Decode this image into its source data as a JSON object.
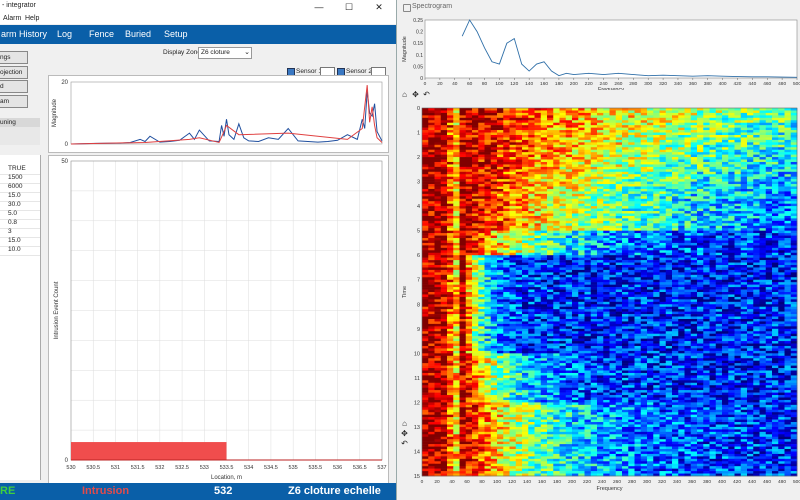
{
  "app": {
    "title": "- integrator",
    "minimize": "—",
    "maximize": "☐",
    "close": "✕"
  },
  "menu": [
    "Alarm",
    "Help"
  ],
  "nav": [
    "arm History",
    "Log",
    "Fence",
    "Buried",
    "Setup"
  ],
  "side_buttons": [
    "ngs",
    "ojection",
    "d",
    "am"
  ],
  "warning_label": "uning",
  "params": [
    "TRUE",
    "1500",
    "6000",
    "15.0",
    "30.0",
    "5.0",
    "0.8",
    "3",
    "15.0",
    "10.0"
  ],
  "display_zone": {
    "label": "Display Zone",
    "value": "Z6 cloture"
  },
  "sensors": [
    {
      "label": "Sensor 1"
    },
    {
      "label": "Sensor 2"
    }
  ],
  "status": {
    "left": "RE",
    "state": "Intrusion",
    "location": "532",
    "zone": "Z6 cloture echelle"
  },
  "colors": {
    "nav": "#0a5fa8",
    "intrusion": "#e34b4b",
    "ok": "#3fcf3f",
    "bar": "#f04d4d"
  },
  "toolbar_icons": [
    "home-icon",
    "pan-icon",
    "back-icon"
  ],
  "spectrogram_window": {
    "title": "Spectrogram"
  },
  "chart_data": [
    {
      "type": "line",
      "ylabel": "Magnitude",
      "xlabel": "",
      "ylim": [
        0,
        20
      ],
      "yticks": [
        "20",
        "0"
      ],
      "series": [
        {
          "color": "#1f4e9e",
          "x": [
            0,
            50,
            100,
            120,
            140,
            150,
            160,
            180,
            200,
            220,
            240,
            250,
            260,
            280,
            300,
            305,
            310,
            315,
            320,
            330,
            340,
            350,
            360,
            380,
            400,
            420,
            440,
            460,
            480,
            500,
            520,
            540,
            560,
            580,
            590,
            595,
            600,
            605,
            610,
            615,
            620,
            630
          ],
          "y": [
            0,
            0.2,
            0.3,
            0.5,
            1.5,
            0.8,
            2.5,
            0.6,
            0.8,
            1.2,
            3.5,
            1.5,
            4.5,
            1,
            0.8,
            6,
            2.5,
            8,
            3,
            1.5,
            6.5,
            2,
            1,
            0.8,
            2,
            1.5,
            5,
            1,
            0.8,
            0.6,
            0.8,
            1.2,
            3,
            1.5,
            8,
            5,
            17,
            10,
            9,
            13,
            4,
            1
          ]
        },
        {
          "color": "#e04040",
          "x": [
            0,
            150,
            240,
            260,
            300,
            310,
            315,
            340,
            440,
            560,
            590,
            600,
            605,
            610,
            615,
            620,
            630
          ],
          "y": [
            0,
            0.5,
            1.5,
            2,
            0.5,
            4,
            6,
            3,
            3.5,
            1.5,
            5,
            19,
            7,
            12,
            6,
            2,
            0.5
          ]
        }
      ]
    },
    {
      "type": "bar",
      "xlabel": "Location, m",
      "ylabel": "Intrusion Event Count",
      "ylim": [
        0,
        50
      ],
      "xlim": [
        530,
        537
      ],
      "xticks": [
        "530",
        "530.5",
        "531",
        "531.5",
        "532",
        "532.5",
        "533",
        "533.5",
        "534",
        "534.5",
        "535",
        "535.5",
        "536",
        "536.5",
        "537"
      ],
      "yticks": [
        "50",
        "0"
      ],
      "bars": [
        {
          "x0": 530,
          "x1": 533.5,
          "value": 3
        }
      ]
    },
    {
      "type": "line",
      "xlabel": "Frequency",
      "ylabel": "Magnitude",
      "ylim": [
        0,
        0.25
      ],
      "xlim": [
        0,
        500
      ],
      "xticks": [
        "0",
        "20",
        "40",
        "60",
        "80",
        "100",
        "120",
        "140",
        "160",
        "180",
        "200",
        "220",
        "240",
        "260",
        "280",
        "300",
        "320",
        "340",
        "360",
        "380",
        "400",
        "420",
        "440",
        "460",
        "480",
        "500"
      ],
      "yticks": [
        "0.25",
        "0.2",
        "0.15",
        "0.1",
        "0.05",
        "0"
      ],
      "series": [
        {
          "color": "#2f6fa8",
          "x": [
            50,
            60,
            70,
            80,
            90,
            100,
            110,
            120,
            130,
            140,
            150,
            160,
            170,
            180,
            190,
            200,
            220,
            240,
            260,
            280,
            300,
            320,
            340,
            360,
            380,
            400,
            420,
            440,
            460,
            480,
            500
          ],
          "y": [
            0.18,
            0.25,
            0.2,
            0.13,
            0.07,
            0.06,
            0.15,
            0.17,
            0.06,
            0.03,
            0.06,
            0.07,
            0.03,
            0.01,
            0.02,
            0.015,
            0.02,
            0.015,
            0.02,
            0.015,
            0.01,
            0.012,
            0.01,
            0.008,
            0.01,
            0.008,
            0.006,
            0.005,
            0.005,
            0.004,
            0.003
          ]
        }
      ]
    },
    {
      "type": "heatmap",
      "xlabel": "Frequency",
      "ylabel": "Time",
      "xlim": [
        0,
        500
      ],
      "ylim": [
        0,
        15
      ],
      "xticks": [
        "0",
        "20",
        "40",
        "60",
        "80",
        "100",
        "120",
        "140",
        "160",
        "180",
        "200",
        "220",
        "240",
        "260",
        "280",
        "300",
        "320",
        "340",
        "360",
        "380",
        "400",
        "420",
        "440",
        "460",
        "480",
        "500"
      ],
      "yticks": [
        "0",
        "1",
        "2",
        "3",
        "4",
        "5",
        "6",
        "7",
        "8",
        "9",
        "10",
        "11",
        "12",
        "13",
        "14",
        "15"
      ],
      "colormap": "jet"
    }
  ]
}
